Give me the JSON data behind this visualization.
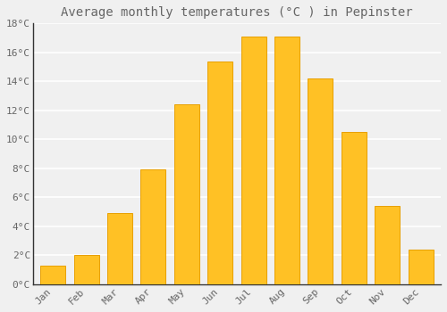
{
  "title": "Average monthly temperatures (°C ) in Pepinster",
  "months": [
    "Jan",
    "Feb",
    "Mar",
    "Apr",
    "May",
    "Jun",
    "Jul",
    "Aug",
    "Sep",
    "Oct",
    "Nov",
    "Dec"
  ],
  "temperatures": [
    1.3,
    2.0,
    4.9,
    7.9,
    12.4,
    15.4,
    17.1,
    17.1,
    14.2,
    10.5,
    5.4,
    2.4
  ],
  "bar_color": "#FFC125",
  "bar_edge_color": "#E8A000",
  "background_color": "#F0F0F0",
  "grid_color": "#FFFFFF",
  "text_color": "#666666",
  "spine_color": "#333333",
  "ylim": [
    0,
    18
  ],
  "yticks": [
    0,
    2,
    4,
    6,
    8,
    10,
    12,
    14,
    16,
    18
  ],
  "ytick_labels": [
    "0°C",
    "2°C",
    "4°C",
    "6°C",
    "8°C",
    "10°C",
    "12°C",
    "14°C",
    "16°C",
    "18°C"
  ],
  "title_fontsize": 10,
  "tick_fontsize": 8,
  "font_family": "monospace",
  "bar_width": 0.75
}
